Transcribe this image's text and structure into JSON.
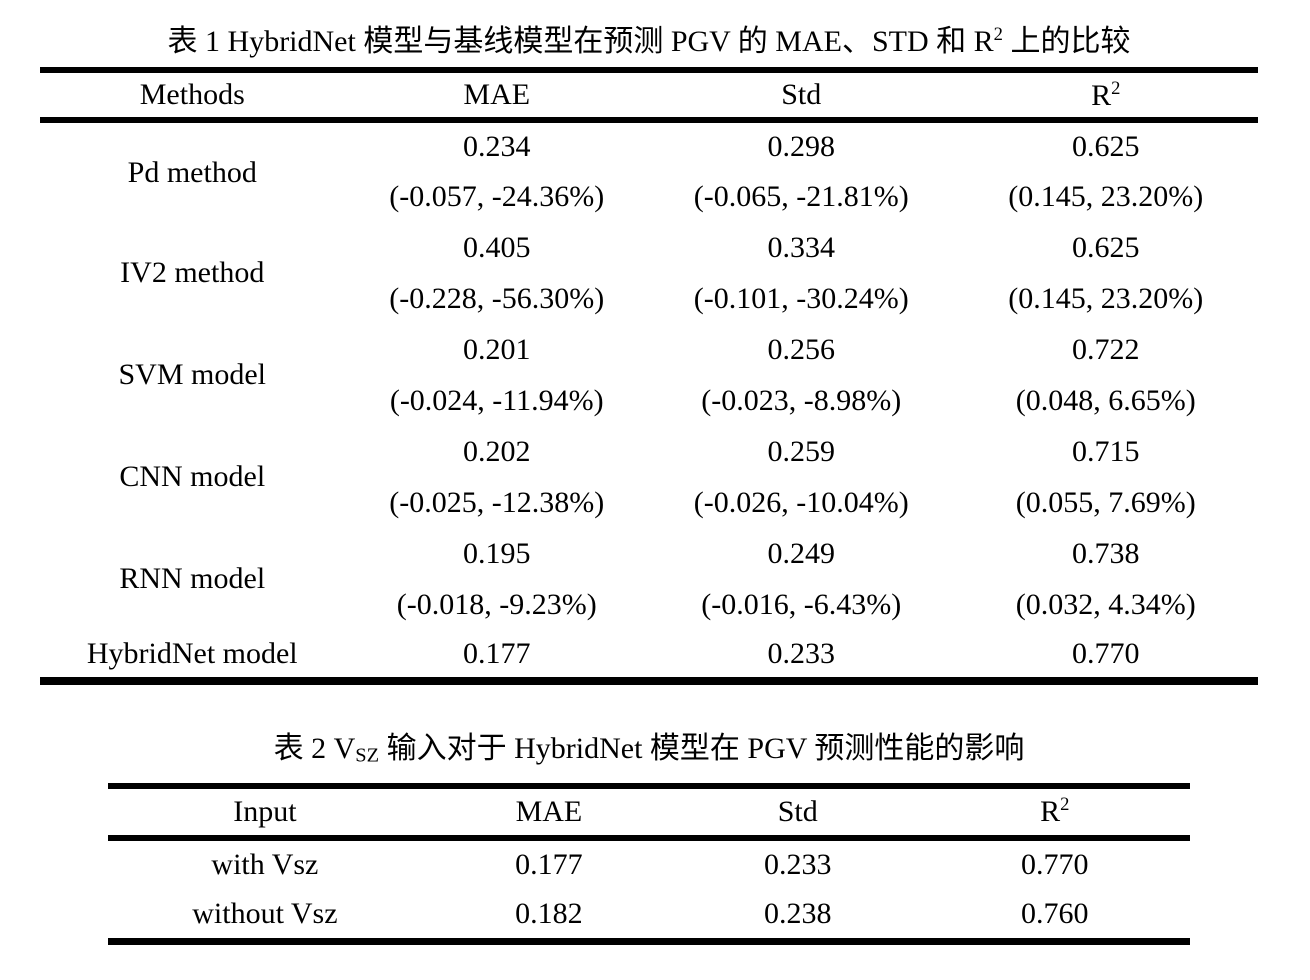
{
  "table1": {
    "title": {
      "prefix": "表 1 HybridNet 模型与基线模型在预测 PGV 的 MAE、STD 和 R",
      "sup": "2",
      "suffix": " 上的比较"
    },
    "headers": {
      "method": "Methods",
      "mae": "MAE",
      "std": "Std",
      "r2_base": "R",
      "r2_sup": "2"
    },
    "rows": [
      {
        "method": "Pd method",
        "mae": "0.234",
        "mae_delta": "(-0.057, -24.36%)",
        "std": "0.298",
        "std_delta": "(-0.065, -21.81%)",
        "r2": "0.625",
        "r2_delta": "(0.145, 23.20%)"
      },
      {
        "method": "IV2 method",
        "mae": "0.405",
        "mae_delta": "(-0.228, -56.30%)",
        "std": "0.334",
        "std_delta": "(-0.101, -30.24%)",
        "r2": "0.625",
        "r2_delta": "(0.145, 23.20%)"
      },
      {
        "method": "SVM model",
        "mae": "0.201",
        "mae_delta": "(-0.024, -11.94%)",
        "std": "0.256",
        "std_delta": "(-0.023, -8.98%)",
        "r2": "0.722",
        "r2_delta": "(0.048, 6.65%)"
      },
      {
        "method": "CNN model",
        "mae": "0.202",
        "mae_delta": "(-0.025, -12.38%)",
        "std": "0.259",
        "std_delta": "(-0.026, -10.04%)",
        "r2": "0.715",
        "r2_delta": "(0.055, 7.69%)"
      },
      {
        "method": "RNN model",
        "mae": "0.195",
        "mae_delta": "(-0.018, -9.23%)",
        "std": "0.249",
        "std_delta": "(-0.016, -6.43%)",
        "r2": "0.738",
        "r2_delta": "(0.032, 4.34%)"
      }
    ],
    "final_row": {
      "method": "HybridNet model",
      "mae": "0.177",
      "std": "0.233",
      "r2": "0.770"
    }
  },
  "table2": {
    "title": {
      "prefix": "表 2 V",
      "sub": "SZ",
      "suffix": " 输入对于 HybridNet 模型在 PGV 预测性能的影响"
    },
    "headers": {
      "input": "Input",
      "mae": "MAE",
      "std": "Std",
      "r2_base": "R",
      "r2_sup": "2"
    },
    "rows": [
      {
        "input": "with Vsz",
        "mae": "0.177",
        "std": "0.233",
        "r2": "0.770"
      },
      {
        "input": "without Vsz",
        "mae": "0.182",
        "std": "0.238",
        "r2": "0.760"
      }
    ]
  },
  "colors": {
    "text": "#000000",
    "background": "#ffffff",
    "rule": "#000000"
  }
}
